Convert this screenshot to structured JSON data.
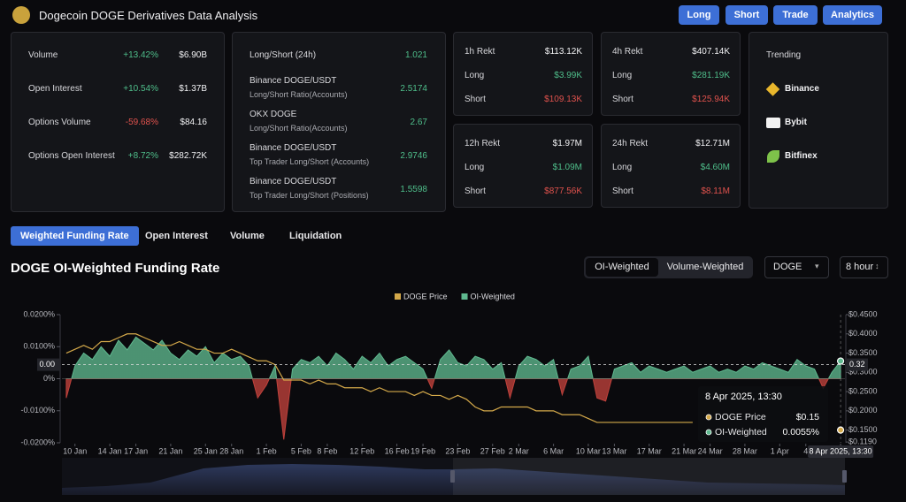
{
  "header": {
    "title": "Dogecoin DOGE Derivatives Data Analysis",
    "buttons": [
      "Long",
      "Short",
      "Trade",
      "Analytics"
    ]
  },
  "stats": [
    {
      "label": "Volume",
      "change": "+13.42%",
      "value": "$6.90B"
    },
    {
      "label": "Open Interest",
      "change": "+10.54%",
      "value": "$1.37B"
    },
    {
      "label": "Options Volume",
      "change": "-59.68%",
      "value": "$84.16"
    },
    {
      "label": "Options Open Interest",
      "change": "+8.72%",
      "value": "$282.72K"
    }
  ],
  "ratios": [
    {
      "label": "Long/Short (24h)",
      "value": "1.021"
    },
    {
      "label": "Binance DOGE/USDT",
      "sublabel": "Long/Short Ratio(Accounts)",
      "value": "2.5174"
    },
    {
      "label": "OKX DOGE",
      "sublabel": "Long/Short Ratio(Accounts)",
      "value": "2.67"
    },
    {
      "label": "Binance DOGE/USDT",
      "sublabel": "Top Trader Long/Short (Accounts)",
      "value": "2.9746"
    },
    {
      "label": "Binance DOGE/USDT",
      "sublabel": "Top Trader Long/Short (Positions)",
      "value": "1.5598"
    }
  ],
  "rekt": [
    {
      "title": "1h Rekt",
      "total": "$113.12K",
      "rows": [
        {
          "label": "Long",
          "value": "$3.99K"
        },
        {
          "label": "Short",
          "value": "$109.13K"
        }
      ]
    },
    {
      "title": "4h Rekt",
      "total": "$407.14K",
      "rows": [
        {
          "label": "Long",
          "value": "$281.19K"
        },
        {
          "label": "Short",
          "value": "$125.94K"
        }
      ]
    },
    {
      "title": "12h Rekt",
      "total": "$1.97M",
      "rows": [
        {
          "label": "Long",
          "value": "$1.09M"
        },
        {
          "label": "Short",
          "value": "$877.56K"
        }
      ]
    },
    {
      "title": "24h Rekt",
      "total": "$12.71M",
      "rows": [
        {
          "label": "Long",
          "value": "$4.60M"
        },
        {
          "label": "Short",
          "value": "$8.11M"
        }
      ]
    }
  ],
  "trending": {
    "title": "Trending",
    "items": [
      "Binance",
      "Bybit",
      "Bitfinex"
    ]
  },
  "tabs": [
    "Weighted Funding Rate",
    "Open Interest",
    "Volume",
    "Liquidation"
  ],
  "active_tab": 0,
  "section_title": "DOGE OI-Weighted Funding Rate",
  "toggle": [
    "OI-Weighted",
    "Volume-Weighted"
  ],
  "selects": [
    "DOGE",
    "8 hour"
  ],
  "chart_data": {
    "type": "line",
    "x": [
      9,
      10,
      11,
      12,
      13,
      14,
      15,
      16,
      17,
      18,
      19,
      20,
      21,
      22,
      23,
      24,
      25,
      26,
      27,
      28,
      29,
      30,
      31,
      32,
      33,
      34,
      35,
      36,
      37,
      38,
      39,
      40,
      41,
      42,
      43,
      44,
      45,
      46,
      47,
      48,
      49,
      50,
      51,
      52,
      53,
      54,
      55,
      56,
      57,
      58,
      59,
      60,
      61,
      62,
      63,
      64,
      65,
      66,
      67,
      68,
      69,
      70,
      71,
      72,
      73,
      74,
      75,
      76,
      77,
      78,
      79,
      80,
      81,
      82,
      83,
      84,
      85,
      86,
      87,
      88,
      89,
      90,
      91,
      92,
      93,
      94,
      95,
      96,
      97,
      98
    ],
    "series": [
      {
        "name": "DOGE Price",
        "color": "#d4a94a",
        "axis": "y2",
        "values": [
          0.35,
          0.36,
          0.37,
          0.36,
          0.38,
          0.38,
          0.39,
          0.4,
          0.4,
          0.39,
          0.38,
          0.37,
          0.37,
          0.38,
          0.37,
          0.36,
          0.36,
          0.35,
          0.35,
          0.36,
          0.35,
          0.34,
          0.33,
          0.33,
          0.32,
          0.28,
          0.28,
          0.28,
          0.27,
          0.28,
          0.27,
          0.27,
          0.26,
          0.26,
          0.26,
          0.25,
          0.26,
          0.25,
          0.25,
          0.25,
          0.24,
          0.25,
          0.24,
          0.24,
          0.23,
          0.24,
          0.23,
          0.21,
          0.2,
          0.2,
          0.21,
          0.21,
          0.21,
          0.21,
          0.2,
          0.2,
          0.2,
          0.19,
          0.19,
          0.19,
          0.18,
          0.17,
          0.17,
          0.17,
          0.17,
          0.17,
          0.17,
          0.17,
          0.17,
          0.17,
          0.17,
          0.17,
          0.17,
          null,
          null,
          null,
          null,
          null,
          null,
          null,
          null,
          null,
          null,
          null,
          null,
          null,
          null,
          null,
          null,
          0.15
        ]
      },
      {
        "name": "OI-Weighted",
        "color": "#5fb98f",
        "negative_color": "#c0413b",
        "values": [
          -0.006,
          0.004,
          0.008,
          0.006,
          0.01,
          0.007,
          0.012,
          0.009,
          0.013,
          0.011,
          0.009,
          0.012,
          0.008,
          0.006,
          0.009,
          0.007,
          0.01,
          0.005,
          0.008,
          0.006,
          0.007,
          0.004,
          -0.006,
          -0.002,
          0.004,
          -0.019,
          0.003,
          0.006,
          0.005,
          0.007,
          0.004,
          0.008,
          0.006,
          0.003,
          0.007,
          0.005,
          0.008,
          0.004,
          0.006,
          0.007,
          0.005,
          0.003,
          -0.003,
          0.006,
          0.009,
          0.005,
          0.004,
          0.007,
          0.006,
          0.003,
          0.005,
          -0.006,
          0.004,
          0.007,
          0.006,
          0.004,
          0.006,
          -0.005,
          0.003,
          0.004,
          0.007,
          -0.006,
          -0.007,
          0.003,
          0.004,
          0.005,
          0.002,
          0.004,
          0.003,
          0.002,
          0.003,
          0.004,
          0.002,
          0.003,
          0.004,
          0.002,
          0.003,
          0.002,
          0.004,
          0.003,
          0.005,
          0.004,
          0.003,
          0.002,
          0.006,
          0.004,
          0.003,
          -0.003,
          0.002,
          0.0055
        ]
      }
    ],
    "xlim": [
      8.5,
      98.5
    ],
    "xticks": [
      {
        "value": 10,
        "label": "10 Jan"
      },
      {
        "value": 14,
        "label": "14 Jan"
      },
      {
        "value": 17,
        "label": "17 Jan"
      },
      {
        "value": 21,
        "label": "21 Jan"
      },
      {
        "value": 25,
        "label": "25 Jan"
      },
      {
        "value": 28,
        "label": "28 Jan"
      },
      {
        "value": 32,
        "label": "1 Feb"
      },
      {
        "value": 36,
        "label": "5 Feb"
      },
      {
        "value": 39,
        "label": "8 Feb"
      },
      {
        "value": 43,
        "label": "12 Feb"
      },
      {
        "value": 47,
        "label": "16 Feb"
      },
      {
        "value": 50,
        "label": "19 Feb"
      },
      {
        "value": 54,
        "label": "23 Feb"
      },
      {
        "value": 58,
        "label": "27 Feb"
      },
      {
        "value": 61,
        "label": "2 Mar"
      },
      {
        "value": 65,
        "label": "6 Mar"
      },
      {
        "value": 69,
        "label": "10 Mar"
      },
      {
        "value": 72,
        "label": "13 Mar"
      },
      {
        "value": 76,
        "label": "17 Mar"
      },
      {
        "value": 80,
        "label": "21 Mar"
      },
      {
        "value": 83,
        "label": "24 Mar"
      },
      {
        "value": 87,
        "label": "28 Mar"
      },
      {
        "value": 91,
        "label": "1 Apr"
      },
      {
        "value": 94,
        "label": "4"
      },
      {
        "value": 98,
        "label": "8 Apr 2025, 13:30"
      }
    ],
    "ylim": [
      -0.02,
      0.02
    ],
    "yticks": [
      {
        "value": 0.02,
        "label": "0.0200%"
      },
      {
        "value": 0.01,
        "label": "0.0100%"
      },
      {
        "value": 0,
        "label": "0%"
      },
      {
        "value": -0.01,
        "label": "-0.0100%"
      },
      {
        "value": -0.02,
        "label": "-0.0200%"
      }
    ],
    "y2lim": [
      0.117,
      0.45
    ],
    "y2ticks": [
      {
        "value": 0.45,
        "label": "$0.4500"
      },
      {
        "value": 0.4,
        "label": "$0.4000"
      },
      {
        "value": 0.35,
        "label": "$0.3500"
      },
      {
        "value": 0.3,
        "label": "$0.3000"
      },
      {
        "value": 0.25,
        "label": "$0.2500"
      },
      {
        "value": 0.2,
        "label": "$0.2000"
      },
      {
        "value": 0.15,
        "label": "$0.1500"
      },
      {
        "value": 0.119,
        "label": "$0.1190"
      }
    ],
    "crosshair": {
      "y2": 0.32,
      "left_label": "0.00",
      "right_label": "0.32"
    },
    "tooltip": {
      "title": "8 Apr 2025, 13:30",
      "rows": [
        {
          "name": "DOGE Price",
          "value": "$0.15"
        },
        {
          "name": "OI-Weighted",
          "value": "0.0055%"
        }
      ]
    },
    "grid": false
  }
}
